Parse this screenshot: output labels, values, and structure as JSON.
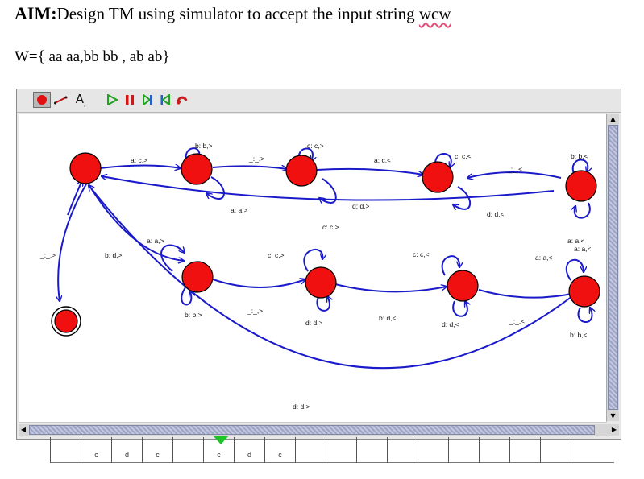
{
  "document": {
    "aim_label": "AIM:",
    "aim_text": "Design TM using simulator to accept the input string ",
    "aim_string": "wcw",
    "w_set": "W={ aa aa,bb bb  , ab ab}"
  },
  "toolbar": {
    "tools": [
      "state-tool",
      "transition-tool",
      "label-tool",
      "run",
      "pause",
      "step",
      "step-back",
      "undo"
    ]
  },
  "diagram": {
    "edge_labels": [
      "b: b,>",
      "a: c,>",
      "_:_,>",
      "c: c,>",
      "a: c,<",
      "c: c,<",
      "_:_,<",
      "b: b,<",
      "a: a,>",
      "d: d,>",
      "d: d,<",
      "a: a,<",
      "a: a,>",
      "b: d,>",
      "_:_,>",
      "c: c,>",
      "c: c,>",
      "c: c,<",
      "a: a,<",
      "a: a,<",
      "b: b,>",
      "_:_,>",
      "d: d,>",
      "b: d,<",
      "d: d,<",
      "_:_,<",
      "b: b,<",
      "d: d,>"
    ]
  },
  "tape": {
    "cells": [
      "",
      "",
      "c",
      "d",
      "c",
      "",
      "c",
      "d",
      "c",
      "",
      "",
      "",
      "",
      "",
      "",
      "",
      "",
      "",
      ""
    ]
  }
}
